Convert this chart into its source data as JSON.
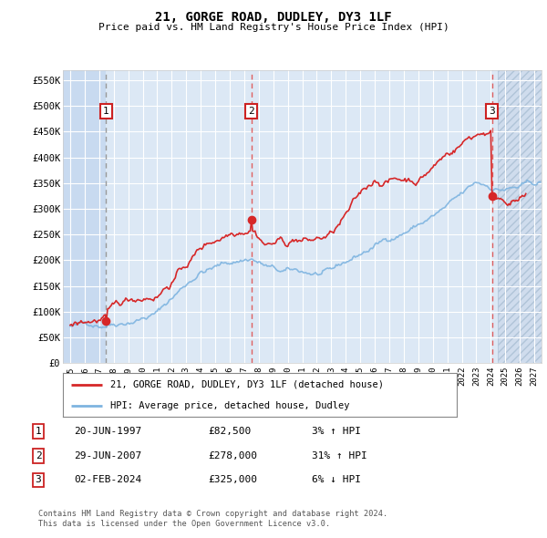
{
  "title": "21, GORGE ROAD, DUDLEY, DY3 1LF",
  "subtitle": "Price paid vs. HM Land Registry's House Price Index (HPI)",
  "transactions": [
    {
      "num": 1,
      "date_label": "20-JUN-1997",
      "price": 82500,
      "date_x": 1997.47,
      "pct": "3%",
      "dir": "↑",
      "vline_style": "dashed_grey"
    },
    {
      "num": 2,
      "date_label": "29-JUN-2007",
      "price": 278000,
      "date_x": 2007.49,
      "pct": "31%",
      "dir": "↑",
      "vline_style": "dashed_red"
    },
    {
      "num": 3,
      "date_label": "02-FEB-2024",
      "price": 325000,
      "date_x": 2024.09,
      "pct": "6%",
      "dir": "↓",
      "vline_style": "dashed_red"
    }
  ],
  "legend_line1": "21, GORGE ROAD, DUDLEY, DY3 1LF (detached house)",
  "legend_line2": "HPI: Average price, detached house, Dudley",
  "footer1": "Contains HM Land Registry data © Crown copyright and database right 2024.",
  "footer2": "This data is licensed under the Open Government Licence v3.0.",
  "ylim": [
    0,
    570000
  ],
  "yticks": [
    0,
    50000,
    100000,
    150000,
    200000,
    250000,
    300000,
    350000,
    400000,
    450000,
    500000,
    550000
  ],
  "xlim": [
    1994.5,
    2027.5
  ],
  "xticks": [
    1995,
    1996,
    1997,
    1998,
    1999,
    2000,
    2001,
    2002,
    2003,
    2004,
    2005,
    2006,
    2007,
    2008,
    2009,
    2010,
    2011,
    2012,
    2013,
    2014,
    2015,
    2016,
    2017,
    2018,
    2019,
    2020,
    2021,
    2022,
    2023,
    2024,
    2025,
    2026,
    2027
  ],
  "hpi_color": "#7eb4e0",
  "price_color": "#d62728",
  "bg_chart": "#dce8f5",
  "bg_stripe": "#c8daf0",
  "bg_hatch_color": "#ccdaeb",
  "grid_color": "#ffffff",
  "vline_red": "#e06060",
  "vline_grey": "#999999",
  "box_color": "#cc2222"
}
